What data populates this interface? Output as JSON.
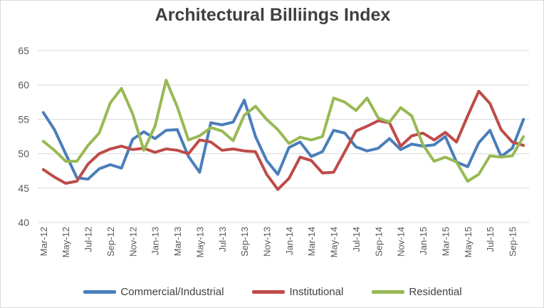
{
  "chart_data": {
    "type": "line",
    "title": "Architectural Billiings Index",
    "xlabel": "",
    "ylabel": "",
    "ylim": [
      40,
      65
    ],
    "yticks": [
      40,
      45,
      50,
      55,
      60,
      65
    ],
    "grid": true,
    "legend_position": "bottom",
    "categories": [
      "Mar-12",
      "Apr-12",
      "May-12",
      "Jun-12",
      "Jul-12",
      "Aug-12",
      "Sep-12",
      "Oct-12",
      "Nov-12",
      "Dec-12",
      "Jan-13",
      "Feb-13",
      "Mar-13",
      "Apr-13",
      "May-13",
      "Jun-13",
      "Jul-13",
      "Aug-13",
      "Sep-13",
      "Oct-13",
      "Nov-13",
      "Dec-13",
      "Jan-14",
      "Feb-14",
      "Mar-14",
      "Apr-14",
      "May-14",
      "Jun-14",
      "Jul-14",
      "Aug-14",
      "Sep-14",
      "Oct-14",
      "Nov-14",
      "Dec-14",
      "Jan-15",
      "Feb-15",
      "Mar-15",
      "Apr-15",
      "May-15",
      "Jun-15",
      "Jul-15",
      "Aug-15",
      "Sep-15",
      "Oct-15"
    ],
    "tick_labels": [
      "Mar-12",
      "May-12",
      "Jul-12",
      "Sep-12",
      "Nov-12",
      "Jan-13",
      "Mar-13",
      "May-13",
      "Jul-13",
      "Sep-13",
      "Nov-13",
      "Jan-14",
      "Mar-14",
      "May-14",
      "Jul-14",
      "Sep-14",
      "Nov-14",
      "Jan-15",
      "Mar-15",
      "May-15",
      "Jul-15",
      "Sep-15"
    ],
    "series": [
      {
        "name": "Commercial/Industrial",
        "color": "#4a7ebb",
        "values": [
          56.0,
          53.5,
          50.0,
          46.5,
          46.3,
          47.8,
          48.4,
          47.9,
          52.1,
          53.2,
          52.2,
          53.4,
          53.5,
          49.6,
          47.3,
          54.5,
          54.2,
          54.6,
          57.8,
          52.5,
          49.0,
          47.0,
          50.9,
          51.7,
          49.6,
          50.3,
          53.4,
          53.0,
          51.0,
          50.4,
          50.8,
          52.2,
          50.6,
          51.4,
          51.1,
          51.3,
          52.5,
          48.8,
          48.1,
          51.6,
          53.4,
          49.6,
          50.8,
          55.0
        ]
      },
      {
        "name": "Institutional",
        "color": "#be4b48",
        "values": [
          47.7,
          46.6,
          45.7,
          46.0,
          48.5,
          50.0,
          50.7,
          51.1,
          50.6,
          50.8,
          50.2,
          50.7,
          50.5,
          50.0,
          52.0,
          51.7,
          50.5,
          50.7,
          50.4,
          50.3,
          47.0,
          44.8,
          46.4,
          49.5,
          49.0,
          47.2,
          47.3,
          50.3,
          53.3,
          54.0,
          54.8,
          54.5,
          51.1,
          52.6,
          53.0,
          52.0,
          53.1,
          51.7,
          55.5,
          59.1,
          57.3,
          53.5,
          51.7,
          51.2
        ]
      },
      {
        "name": "Residential",
        "color": "#98b954",
        "values": [
          51.8,
          50.5,
          48.9,
          48.9,
          51.2,
          53.0,
          57.4,
          59.5,
          55.8,
          50.5,
          54.0,
          60.7,
          56.8,
          52.0,
          52.6,
          53.8,
          53.3,
          51.9,
          55.6,
          56.9,
          55.0,
          53.5,
          51.5,
          52.4,
          52.0,
          52.5,
          58.1,
          57.5,
          56.3,
          58.1,
          55.2,
          54.6,
          56.7,
          55.5,
          51.3,
          48.9,
          49.5,
          48.8,
          46.0,
          47.0,
          49.7,
          49.5,
          49.7,
          52.5
        ]
      }
    ]
  }
}
